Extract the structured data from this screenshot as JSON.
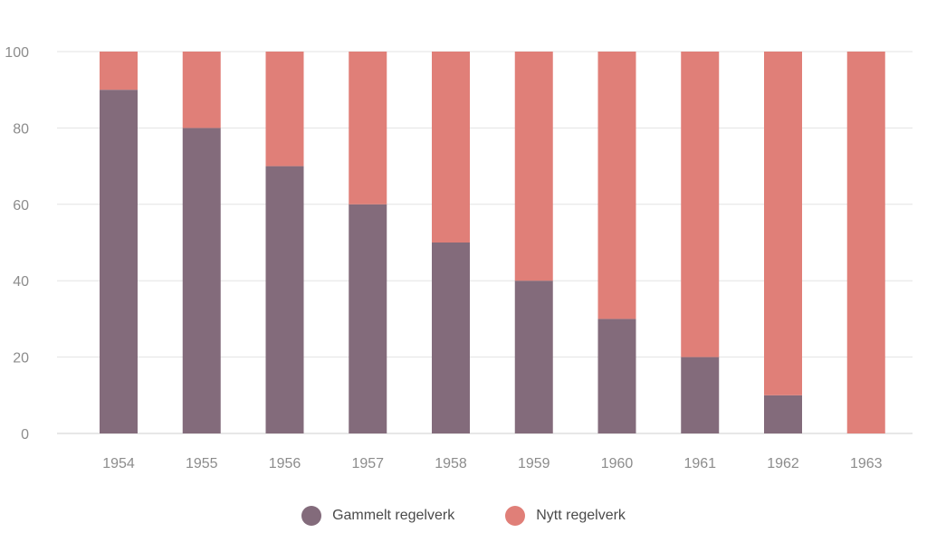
{
  "chart_data": {
    "type": "bar",
    "stacked": true,
    "categories": [
      "1954",
      "1955",
      "1956",
      "1957",
      "1958",
      "1959",
      "1960",
      "1961",
      "1962",
      "1963"
    ],
    "series": [
      {
        "name": "Gammelt regelverk",
        "color": "#836b7b",
        "values": [
          90,
          80,
          70,
          60,
          50,
          40,
          30,
          20,
          10,
          0
        ]
      },
      {
        "name": "Nytt regelverk",
        "color": "#e07f78",
        "values": [
          10,
          20,
          30,
          40,
          50,
          60,
          70,
          80,
          90,
          100
        ]
      }
    ],
    "yticks": [
      "0",
      "20",
      "40",
      "60",
      "80",
      "100"
    ],
    "ylim": [
      0,
      100
    ],
    "grid": true,
    "legend_position": "bottom-center"
  }
}
